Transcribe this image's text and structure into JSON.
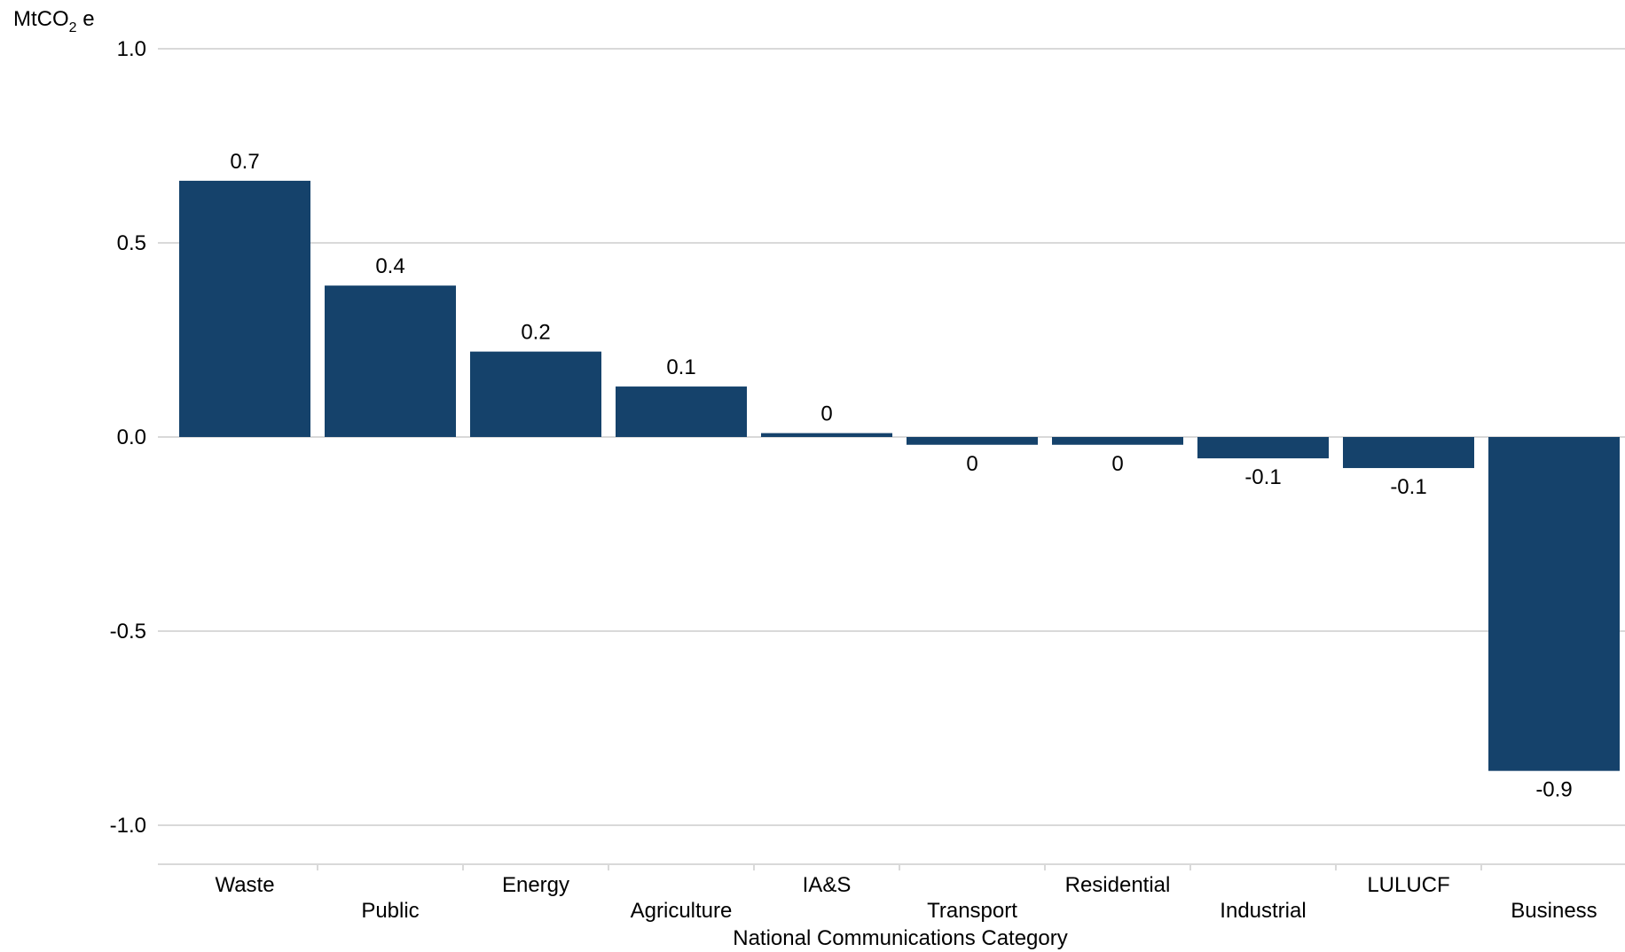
{
  "chart_data": {
    "type": "bar",
    "ylabel": "MtCO",
    "ylabel_sub": "2",
    "ylabel_suffix": " e",
    "xlabel": "National Communications Category",
    "ylim": [
      -1.0,
      1.0
    ],
    "yticks": [
      1.0,
      0.5,
      0.0,
      -0.5,
      -1.0
    ],
    "ytick_labels": [
      "1.0",
      "0.5",
      "0.0",
      "-0.5",
      "-1.0"
    ],
    "grid": true,
    "bar_color": "#15426b",
    "categories": [
      "Waste",
      "Public",
      "Energy",
      "Agriculture",
      "IA&S",
      "Transport",
      "Residential",
      "Industrial",
      "LULUCF",
      "Business"
    ],
    "values": [
      0.66,
      0.39,
      0.22,
      0.13,
      0.01,
      -0.02,
      -0.02,
      -0.055,
      -0.08,
      -0.86
    ],
    "data_labels": [
      "0.7",
      "0.4",
      "0.2",
      "0.1",
      "0",
      "0",
      "0",
      "-0.1",
      "-0.1",
      "-0.9"
    ]
  }
}
